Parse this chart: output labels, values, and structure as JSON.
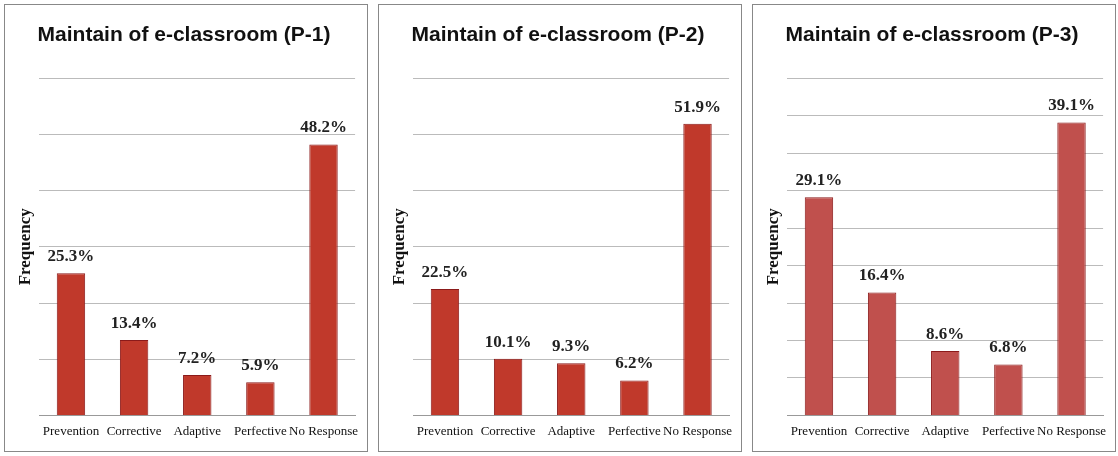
{
  "chart_data": [
    {
      "type": "bar",
      "title": "Maintain of e-classroom (P-1)",
      "ylabel": "Frequency",
      "categories": [
        "Prevention",
        "Corrective",
        "Adaptive",
        "Perfective",
        "No Response"
      ],
      "values": [
        25.3,
        13.4,
        7.2,
        5.9,
        48.2
      ],
      "value_labels": [
        "25.3%",
        "13.4%",
        "7.2%",
        "5.9%",
        "48.2%"
      ],
      "color": "#c0392b",
      "grid": "y",
      "tick_labels": "x"
    },
    {
      "type": "bar",
      "title": "Maintain of e-classroom (P-2)",
      "ylabel": "Frequency",
      "categories": [
        "Prevention",
        "Corrective",
        "Adaptive",
        "Perfective",
        "No Response"
      ],
      "values": [
        22.5,
        10.1,
        9.3,
        6.2,
        51.9
      ],
      "value_labels": [
        "22.5%",
        "10.1%",
        "9.3%",
        "6.2%",
        "51.9%"
      ],
      "color": "#c0392b",
      "grid": "y",
      "tick_labels": "x"
    },
    {
      "type": "bar",
      "title": "Maintain of e-classroom (P-3)",
      "ylabel": "Frequency",
      "categories": [
        "Prevention",
        "Corrective",
        "Adaptive",
        "Perfective",
        "No Response"
      ],
      "values": [
        29.1,
        16.4,
        8.6,
        6.8,
        39.1
      ],
      "value_labels": [
        "29.1%",
        "16.4%",
        "8.6%",
        "6.8%",
        "39.1%"
      ],
      "color": "#c0504d",
      "grid": "y",
      "tick_labels": "x"
    }
  ]
}
